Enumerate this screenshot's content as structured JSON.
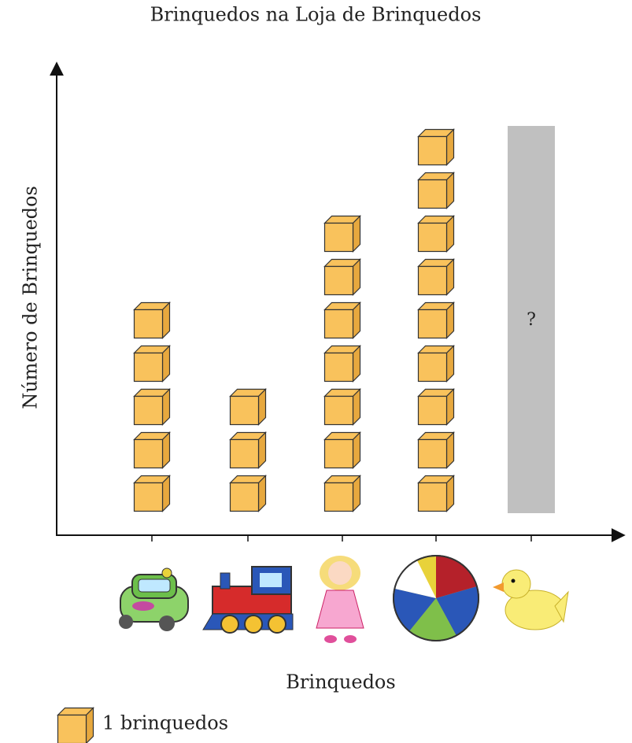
{
  "chart_data": {
    "type": "pictograph",
    "title": "Brinquedos na Loja de Brinquedos",
    "x_label": "Brinquedos",
    "y_label": "Número de Brinquedos",
    "categories": [
      null,
      null,
      null,
      null,
      null
    ],
    "values": [
      5,
      3,
      7,
      9,
      null
    ],
    "value_labels": [
      null,
      null,
      null,
      null,
      "?"
    ],
    "color": "#f9c25c",
    "legend_label": "1 brinquedos"
  }
}
